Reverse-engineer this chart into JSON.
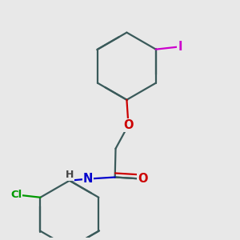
{
  "bg_color": "#e8e8e8",
  "bond_color": "#3a5a5a",
  "bond_width": 1.6,
  "atom_colors": {
    "O": "#cc0000",
    "N": "#0000cc",
    "Cl": "#009900",
    "I": "#cc00cc",
    "H": "#444444",
    "C": "#3a5a5a"
  },
  "font_size": 9.5
}
